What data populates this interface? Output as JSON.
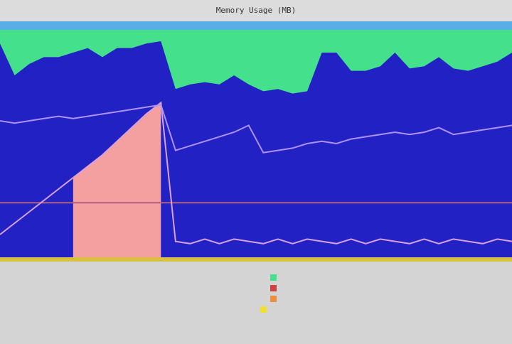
{
  "window": {
    "title": "Memory Usage (MB)"
  },
  "chart_data": {
    "type": "area",
    "x": [
      0,
      1,
      2,
      3,
      4,
      5,
      6,
      7,
      8,
      9,
      10,
      11,
      12,
      13,
      14,
      15,
      16,
      17,
      18,
      19,
      20,
      21,
      22,
      23,
      24,
      25,
      26,
      27,
      28,
      29,
      30,
      31,
      32,
      33,
      34,
      35
    ],
    "xlim": [
      0,
      35
    ],
    "ylim": [
      0,
      100
    ],
    "background_color": "#44e08c",
    "series": [
      {
        "color": "#2222c4",
        "style": "area",
        "values": [
          94,
          80,
          85,
          88,
          88,
          90,
          92,
          88,
          92,
          92,
          94,
          95,
          74,
          76,
          77,
          76,
          80,
          76,
          73,
          74,
          72,
          73,
          90,
          90,
          82,
          82,
          84,
          90,
          83,
          84,
          88,
          83,
          82,
          84,
          86,
          90
        ]
      },
      {
        "color": "#f5a0a0",
        "style": "area",
        "values": [
          null,
          null,
          null,
          null,
          null,
          35,
          40,
          45,
          51,
          57,
          63,
          68,
          null,
          null,
          null,
          null,
          null,
          null,
          null,
          null,
          null,
          null,
          null,
          null,
          null,
          null,
          null,
          null,
          null,
          null,
          null,
          null,
          null,
          null,
          null,
          null
        ]
      },
      {
        "color": "#d8a0d8",
        "style": "line",
        "values": [
          10,
          15,
          20,
          25,
          30,
          35,
          40,
          45,
          51,
          57,
          63,
          68,
          7,
          6,
          8,
          6,
          8,
          7,
          6,
          8,
          6,
          8,
          7,
          6,
          8,
          6,
          8,
          7,
          6,
          8,
          6,
          8,
          7,
          6,
          8,
          7
        ]
      },
      {
        "color": "#b090f0",
        "style": "line",
        "values": [
          60,
          59,
          60,
          61,
          62,
          61,
          62,
          63,
          64,
          65,
          66,
          67,
          47,
          49,
          51,
          53,
          55,
          58,
          46,
          47,
          48,
          50,
          51,
          50,
          52,
          53,
          54,
          55,
          54,
          55,
          57,
          54,
          55,
          56,
          57,
          58
        ]
      }
    ],
    "threshold": 24,
    "threshold_color": "#b06080"
  }
}
